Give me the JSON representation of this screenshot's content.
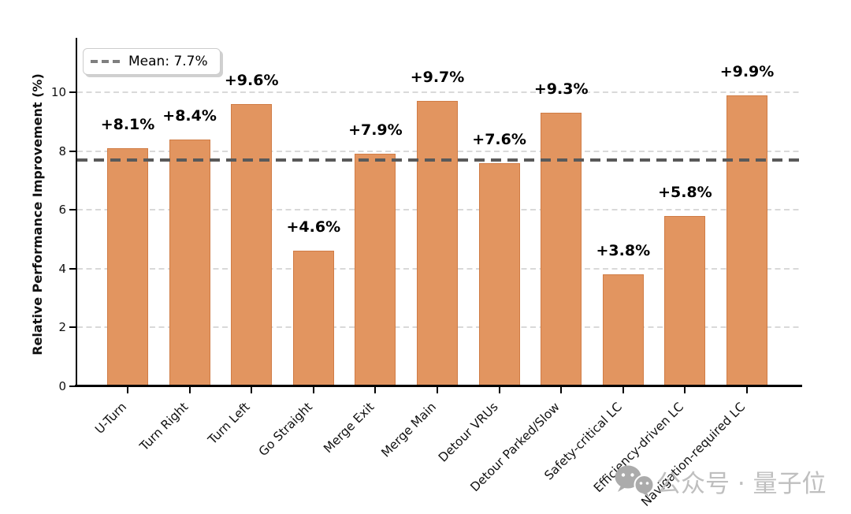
{
  "chart_data": {
    "type": "bar",
    "categories": [
      "U-Turn",
      "Turn Right",
      "Turn Left",
      "Go Straight",
      "Merge Exit",
      "Merge Main",
      "Detour VRUs",
      "Detour Parked/Slow",
      "Safety-critical LC",
      "Efficiency-driven LC",
      "Navigation-required LC"
    ],
    "values": [
      8.1,
      8.4,
      9.6,
      4.6,
      7.9,
      9.7,
      7.6,
      9.3,
      3.8,
      5.8,
      9.9
    ],
    "bar_labels": [
      "+8.1%",
      "+8.4%",
      "+9.6%",
      "+4.6%",
      "+7.9%",
      "+9.7%",
      "+7.6%",
      "+9.3%",
      "+3.8%",
      "+5.8%",
      "+9.9%"
    ],
    "title": "",
    "xlabel": "",
    "ylabel": "Relative Performance Improvement (%)",
    "yticks": [
      0,
      2,
      4,
      6,
      8,
      10
    ],
    "ylim": [
      0,
      11.85
    ],
    "grid": "horizontal-dashed",
    "legend_position": "upper-left",
    "mean": {
      "value": 7.7,
      "legend_label": "Mean: 7.7%"
    },
    "colors": {
      "bar": "#E29560",
      "bar_edge": "#D07C45",
      "mean_line": "#595959",
      "grid_line": "#D9D9D9",
      "watermark_text": "#BFBFBF",
      "watermark_icon": "#ABABAB"
    }
  },
  "watermark": {
    "text": "公众号 · 量子位",
    "icon": "wechat-logo"
  }
}
